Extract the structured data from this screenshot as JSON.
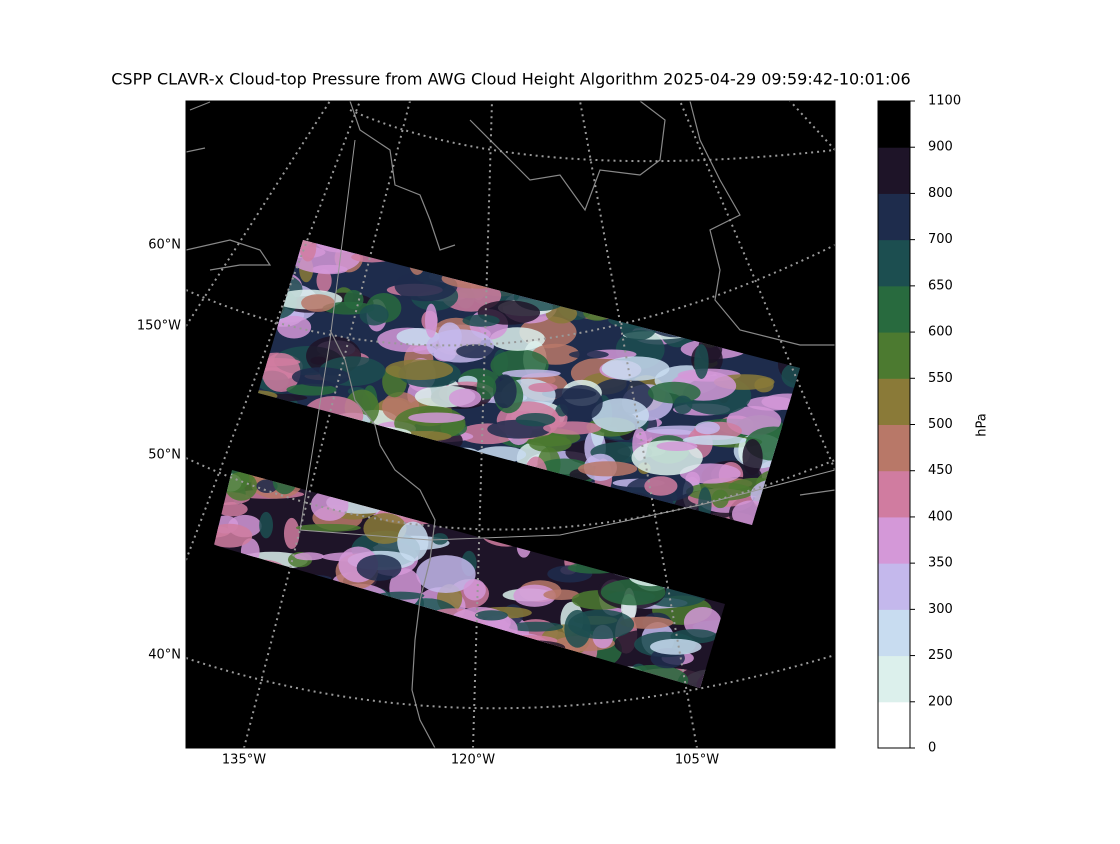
{
  "title": "CSPP CLAVR-x Cloud-top Pressure from AWG Cloud Height Algorithm 2025-04-29 09:59:42-10:01:06",
  "map": {
    "lat_labels": [
      "60°N",
      "50°N",
      "40°N"
    ],
    "left_lon_labels": [
      "150°W"
    ],
    "bottom_lon_labels": [
      "135°W",
      "120°W",
      "105°W"
    ]
  },
  "colorbar": {
    "label": "hPa",
    "ticks": [
      0,
      200,
      250,
      300,
      350,
      400,
      450,
      500,
      550,
      600,
      650,
      700,
      800,
      900,
      1100
    ],
    "colors": [
      "#ffffff",
      "#dcf0ec",
      "#c8dcf0",
      "#c4b8ec",
      "#d498d8",
      "#d07ca0",
      "#b87868",
      "#8a7a38",
      "#4c7a30",
      "#286a3e",
      "#1c4e50",
      "#1e2c4c",
      "#1e1428",
      "#000000"
    ]
  }
}
